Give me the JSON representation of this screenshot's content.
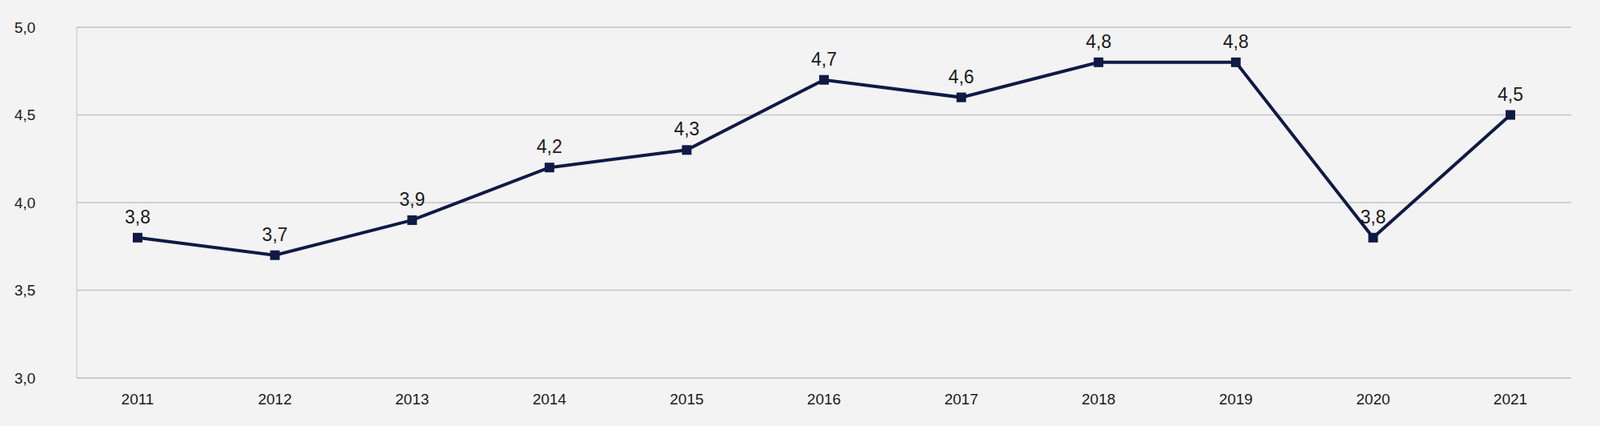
{
  "chart_data": {
    "type": "line",
    "categories": [
      "2011",
      "2012",
      "2013",
      "2014",
      "2015",
      "2016",
      "2017",
      "2018",
      "2019",
      "2020",
      "2021"
    ],
    "values": [
      3.8,
      3.7,
      3.9,
      4.2,
      4.3,
      4.7,
      4.6,
      4.8,
      4.8,
      3.8,
      4.5
    ],
    "value_labels": [
      "3,8",
      "3,7",
      "3,9",
      "4,2",
      "4,3",
      "4,7",
      "4,6",
      "4,8",
      "4,8",
      "3,8",
      "4,5"
    ],
    "color": "#0f1a45",
    "ylim": [
      3,
      5
    ],
    "yticks": [
      {
        "value": 3,
        "label": "3,0"
      },
      {
        "value": 3.5,
        "label": "3,5"
      },
      {
        "value": 4,
        "label": "4,0"
      },
      {
        "value": 4.5,
        "label": "4,5"
      },
      {
        "value": 5,
        "label": "5,0"
      }
    ],
    "grid": true,
    "data_labels": true,
    "marker": "square"
  }
}
